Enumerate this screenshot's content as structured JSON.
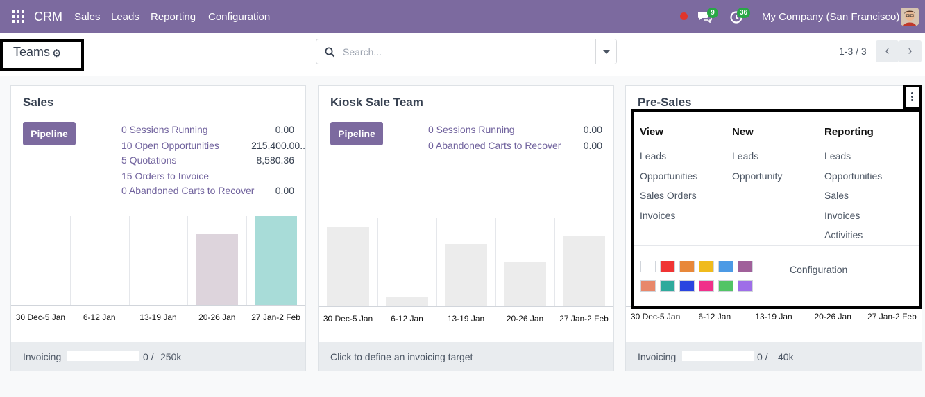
{
  "nav": {
    "brand": "CRM",
    "menu": [
      "Sales",
      "Leads",
      "Reporting",
      "Configuration"
    ],
    "chat_count": "9",
    "activity_count": "36",
    "company": "My Company (San Francisco)"
  },
  "control": {
    "breadcrumb": "Teams",
    "search_placeholder": "Search...",
    "pager": "1-3 / 3"
  },
  "cards": [
    {
      "title": "Sales",
      "button": "Pipeline",
      "stats": [
        {
          "label": "0 Sessions Running",
          "value": "0.00"
        },
        {
          "label": "10 Open Opportunities",
          "value": "215,400.00.."
        },
        {
          "label": "5 Quotations",
          "value": "8,580.36"
        },
        {
          "label": "15 Orders to Invoice",
          "value": ""
        },
        {
          "label": "0  Abandoned Carts to Recover",
          "value": "0.00"
        }
      ],
      "chart_data": {
        "type": "bar",
        "categories": [
          "30 Dec-5 Jan",
          "6-12 Jan",
          "13-19 Jan",
          "20-26 Jan",
          "27 Jan-2 Feb"
        ],
        "values": [
          0,
          0,
          0,
          80,
          100
        ],
        "colors": [
          "#d9cdd8",
          "#d9cdd8",
          "#d9cdd8",
          "#ddd4dc",
          "#a8dcd8"
        ]
      },
      "footer": {
        "label": "Invoicing",
        "progress": "0 /",
        "target": "250k"
      }
    },
    {
      "title": "Kiosk Sale Team",
      "button": "Pipeline",
      "stats": [
        {
          "label": "0 Sessions Running",
          "value": "0.00"
        },
        {
          "label": "0  Abandoned Carts to Recover",
          "value": "0.00"
        }
      ],
      "chart_data": {
        "type": "bar",
        "categories": [
          "30 Dec-5 Jan",
          "6-12 Jan",
          "13-19 Jan",
          "20-26 Jan",
          "27 Jan-2 Feb"
        ],
        "values": [
          90,
          10,
          70,
          50,
          80
        ],
        "colors": [
          "#ececec",
          "#ececec",
          "#ececec",
          "#ececec",
          "#ececec"
        ]
      },
      "footer": {
        "label": "Click to define an invoicing target"
      }
    },
    {
      "title": "Pre-Sales",
      "chart_data": {
        "type": "bar",
        "categories": [
          "30 Dec-5 Jan",
          "6-12 Jan",
          "13-19 Jan",
          "20-26 Jan",
          "27 Jan-2 Feb"
        ]
      },
      "footer": {
        "label": "Invoicing",
        "progress": "0 /",
        "target": "40k"
      }
    }
  ],
  "dropdown": {
    "columns": [
      {
        "header": "View",
        "items": [
          "Leads",
          "Opportunities",
          "Sales Orders",
          "Invoices"
        ]
      },
      {
        "header": "New",
        "items": [
          "Leads",
          "Opportunity"
        ]
      },
      {
        "header": "Reporting",
        "items": [
          "Leads",
          "Opportunities",
          "Sales",
          "Invoices",
          "Activities"
        ]
      }
    ],
    "configuration": "Configuration",
    "swatches": [
      "#ffffff",
      "#f03434",
      "#e8883a",
      "#f0bb1c",
      "#4c9ae5",
      "#a0609a",
      "#e8876a",
      "#2eaa9c",
      "#2a44e0",
      "#f0308a",
      "#52c465",
      "#9e6ee8"
    ]
  }
}
